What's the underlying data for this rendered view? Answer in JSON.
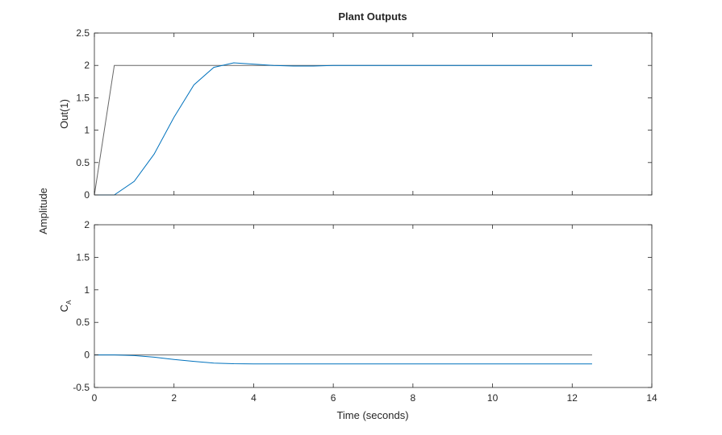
{
  "chart_data": {
    "type": "line",
    "title": "Plant Outputs",
    "xlabel": "Time (seconds)",
    "ylabel": "Amplitude",
    "xlim": [
      0,
      14
    ],
    "xticks": [
      0,
      2,
      4,
      6,
      8,
      10,
      12,
      14
    ],
    "grid": false,
    "subplots": [
      {
        "ylabel_main": "Out(1)",
        "ylabel_sub": "",
        "ylim": [
          0,
          2.5
        ],
        "yticks": [
          0,
          0.5,
          1,
          1.5,
          2,
          2.5
        ],
        "series": [
          {
            "color": "#666666",
            "x": [
              0,
              0.5,
              1,
              2,
              4,
              6,
              8,
              10,
              12.5
            ],
            "y": [
              0,
              2,
              2,
              2,
              2,
              2,
              2,
              2,
              2
            ]
          },
          {
            "color": "#0072bd",
            "x": [
              0,
              0.5,
              1,
              1.5,
              2,
              2.5,
              3,
              3.5,
              4,
              4.5,
              5,
              5.5,
              6,
              7,
              8,
              9,
              10,
              11,
              12,
              12.5
            ],
            "y": [
              0,
              0,
              0.21,
              0.63,
              1.2,
              1.7,
              1.97,
              2.04,
              2.02,
              2.0,
              1.99,
              1.99,
              2.0,
              2.0,
              2.0,
              2.0,
              2.0,
              2.0,
              2.0,
              2.0
            ]
          }
        ]
      },
      {
        "ylabel_main": "C",
        "ylabel_sub": "A",
        "ylim": [
          -0.5,
          2
        ],
        "yticks": [
          -0.5,
          0,
          0.5,
          1,
          1.5,
          2
        ],
        "series": [
          {
            "color": "#666666",
            "x": [
              0,
              12.5
            ],
            "y": [
              0,
              0
            ]
          },
          {
            "color": "#0072bd",
            "x": [
              0,
              0.5,
              1,
              1.5,
              2,
              2.5,
              3,
              3.5,
              4,
              5,
              6,
              8,
              10,
              12,
              12.5
            ],
            "y": [
              0,
              0,
              -0.01,
              -0.035,
              -0.07,
              -0.1,
              -0.125,
              -0.135,
              -0.138,
              -0.138,
              -0.138,
              -0.138,
              -0.138,
              -0.138,
              -0.138
            ]
          }
        ]
      }
    ]
  }
}
